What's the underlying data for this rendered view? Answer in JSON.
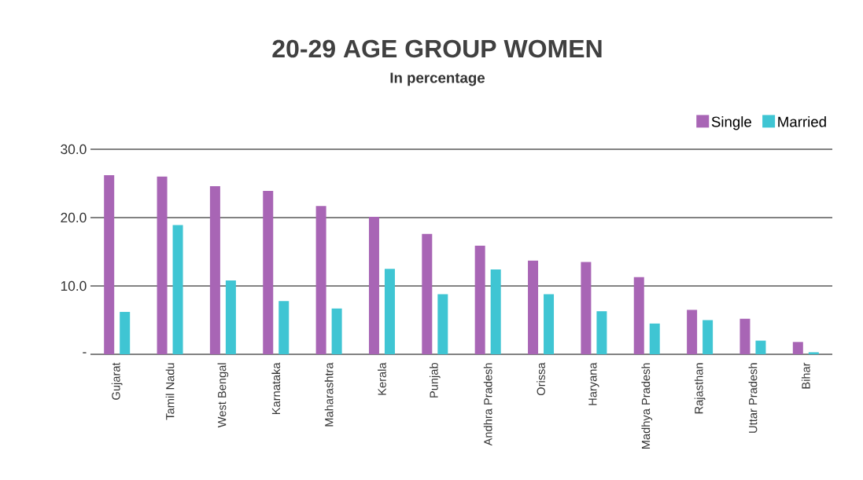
{
  "chart_data": {
    "type": "bar",
    "title": "20-29 AGE GROUP WOMEN",
    "subtitle": "In percentage",
    "categories": [
      "Gujarat",
      "Tamil Nadu",
      "West Bengal",
      "Karnataka",
      "Maharashtra",
      "Kerala",
      "Punjab",
      "Andhra Pradesh",
      "Orissa",
      "Haryana",
      "Madhya Pradesh",
      "Rajasthan",
      "Uttar Pradesh",
      "Bihar"
    ],
    "series": [
      {
        "name": "Single",
        "color": "#a865b5",
        "values": [
          26.2,
          26.0,
          24.6,
          23.9,
          21.7,
          20.1,
          17.6,
          15.9,
          13.7,
          13.5,
          11.3,
          6.5,
          5.2,
          1.8
        ]
      },
      {
        "name": "Married",
        "color": "#3fc5d3",
        "values": [
          6.2,
          18.9,
          10.8,
          7.8,
          6.7,
          12.5,
          8.8,
          12.4,
          8.8,
          6.3,
          4.5,
          5.0,
          2.0,
          0.3
        ]
      }
    ],
    "ylim": [
      0,
      30
    ],
    "yticks": [
      {
        "value": 0,
        "label": "-"
      },
      {
        "value": 10,
        "label": "10.0"
      },
      {
        "value": 20,
        "label": "20.0"
      },
      {
        "value": 30,
        "label": "30.0"
      }
    ],
    "grid": "y",
    "legend": "top right"
  }
}
